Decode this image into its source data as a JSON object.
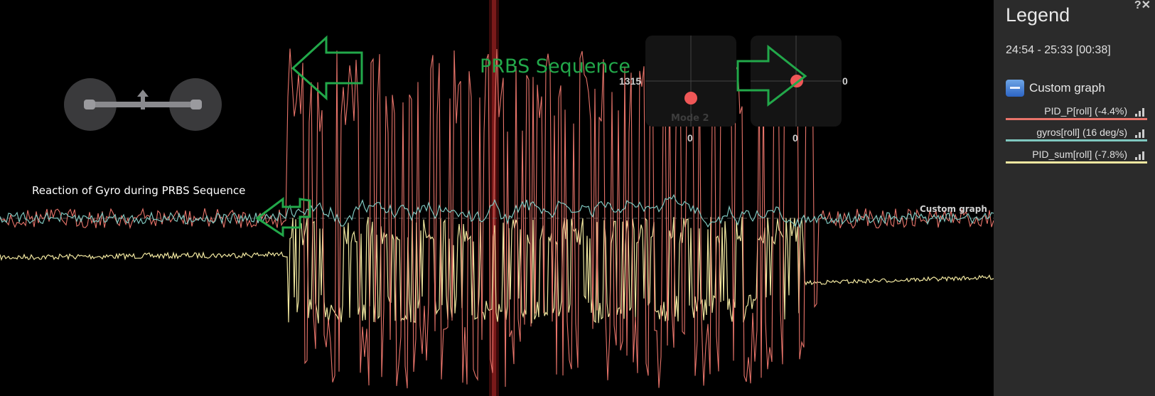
{
  "annotations": {
    "prbs_label": "PRBS Sequence",
    "gyro_reaction_label": "Reaction of Gyro during PRBS Sequence"
  },
  "sticks": {
    "left_value": "1315",
    "right_value": "0",
    "left_bottom_value": "0",
    "right_bottom_value": "0",
    "mode_label": "Mode 2"
  },
  "graph": {
    "name": "Custom graph"
  },
  "legend": {
    "title": "Legend",
    "time_range": "24:54 - 25:33 [00:38]",
    "group_label": "Custom graph",
    "items": [
      {
        "label": "PID_P[roll] (-4.4%)",
        "color": "#e8746a"
      },
      {
        "label": "gyros[roll] (16 deg/s)",
        "color": "#7fc7bf"
      },
      {
        "label": "PID_sum[roll] (-7.8%)",
        "color": "#f1e7a0"
      }
    ],
    "icons": [
      "help-icon",
      "close-icon"
    ]
  },
  "colors": {
    "pid_p": "#e8746a",
    "gyro": "#7fc7bf",
    "pid_sum": "#f1e7a0",
    "annotation": "#22a84a",
    "cursor": "#7a1a1a"
  }
}
